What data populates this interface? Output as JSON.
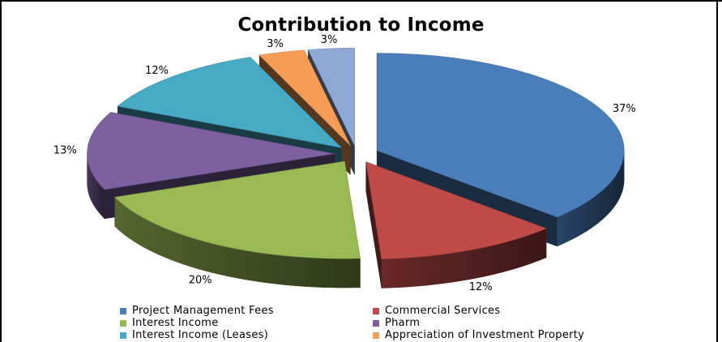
{
  "chart_data": {
    "type": "pie",
    "title": "Contribution to Income",
    "categories": [
      "Project Management Fees",
      "Commercial Services",
      "Interest Income",
      "Pharm",
      "Interest Income (Leases)",
      "Appreciation of Investment Property",
      ""
    ],
    "values": [
      37,
      12,
      20,
      13,
      12,
      3,
      3
    ],
    "data_labels": [
      "37%",
      "12%",
      "20%",
      "13%",
      "12%",
      "3%",
      "3%"
    ],
    "colors": [
      "#4a7ebb",
      "#be4b48",
      "#98b954",
      "#7d60a0",
      "#46aac5",
      "#f59d56",
      "#8fa9d6"
    ],
    "exploded": true,
    "three_d": true,
    "legend_position": "bottom"
  }
}
